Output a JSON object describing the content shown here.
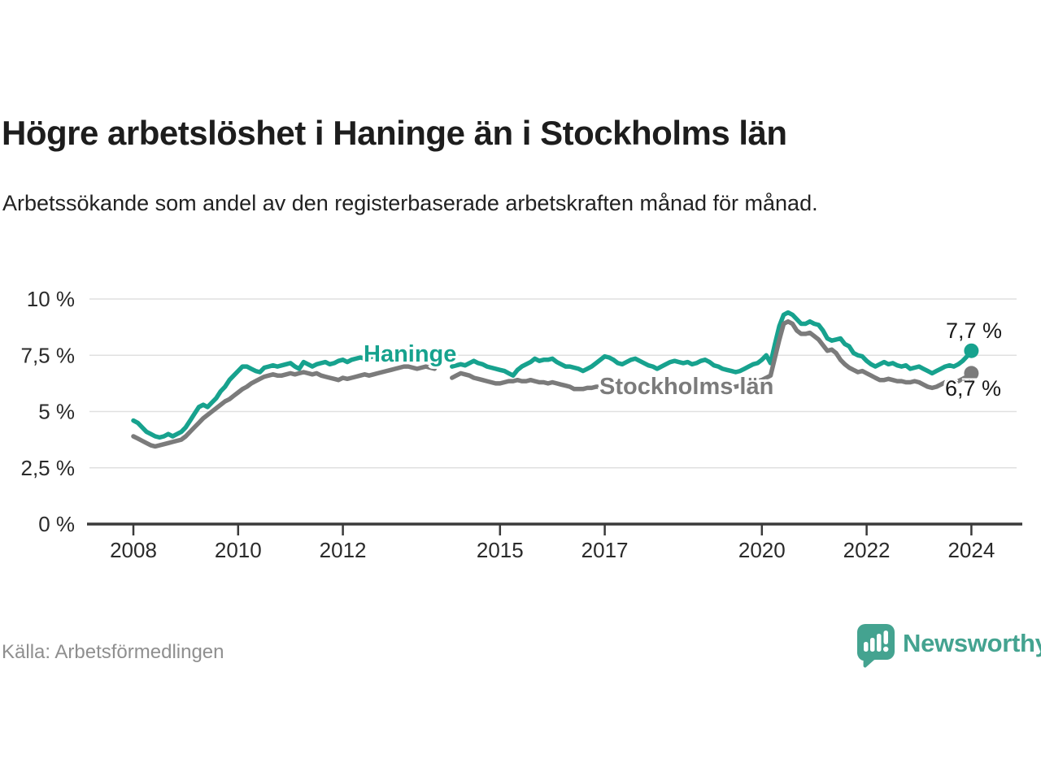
{
  "header": {
    "title": "Högre arbetslöshet i Haninge än i Stockholms län",
    "subtitle": "Arbetssökande som andel av den registerbaserade arbetskraften månad för månad."
  },
  "footer": {
    "source": "Källa: Arbetsförmedlingen",
    "brand": "Newsworthy"
  },
  "colors": {
    "accent_teal": "#17a28e",
    "logo_teal": "#44a390",
    "series_gray": "#7b7b7b",
    "grid": "#e0e0e0",
    "axis": "#3a3a3a",
    "text_dark": "#1d1d1d",
    "text_muted": "#8f8f8f"
  },
  "chart_data": {
    "type": "line",
    "title": "Högre arbetslöshet i Haninge än i Stockholms län",
    "subtitle": "Arbetssökande som andel av den registerbaserade arbetskraften månad för månad.",
    "unit": "%",
    "x_domain": {
      "start_year": 2008,
      "start_month": 1,
      "interval": "month",
      "points": 193,
      "end_year": 2024,
      "end_month": 1
    },
    "data_gap_months": [
      "2013-11",
      "2013-12",
      "2014-01"
    ],
    "ylim": [
      0,
      10
    ],
    "grid": true,
    "x_ticks": [
      2008,
      2010,
      2012,
      2015,
      2017,
      2020,
      2022,
      2024
    ],
    "y_ticks": [
      {
        "value": 10,
        "label": "10 %"
      },
      {
        "value": 7.5,
        "label": "7,5 %"
      },
      {
        "value": 5,
        "label": "5 %"
      },
      {
        "value": 2.5,
        "label": "2,5 %"
      },
      {
        "value": 0,
        "label": "0 %"
      }
    ],
    "series": [
      {
        "name": "Haninge",
        "color": "#17a28e",
        "end_label": "7,7 %",
        "end_value": 7.7,
        "values": [
          4.6,
          4.5,
          4.3,
          4.1,
          4.0,
          3.9,
          3.85,
          3.9,
          4.0,
          3.9,
          4.0,
          4.1,
          4.3,
          4.6,
          4.9,
          5.2,
          5.3,
          5.2,
          5.4,
          5.6,
          5.9,
          6.1,
          6.4,
          6.6,
          6.8,
          7.0,
          7.0,
          6.9,
          6.8,
          6.75,
          6.95,
          7.0,
          7.05,
          7.0,
          7.05,
          7.1,
          7.15,
          7.0,
          6.9,
          7.2,
          7.1,
          7.0,
          7.1,
          7.15,
          7.2,
          7.1,
          7.15,
          7.25,
          7.3,
          7.2,
          7.3,
          7.35,
          7.4,
          7.35,
          7.4,
          7.45,
          7.4,
          7.45,
          7.4,
          7.45,
          7.4,
          7.45,
          7.5,
          7.45,
          7.5,
          7.45,
          7.4,
          7.45,
          7.5,
          7.45,
          null,
          null,
          null,
          7.0,
          7.05,
          7.1,
          7.05,
          7.15,
          7.25,
          7.15,
          7.1,
          7.0,
          6.95,
          6.9,
          6.85,
          6.8,
          6.7,
          6.6,
          6.85,
          7.0,
          7.1,
          7.2,
          7.35,
          7.25,
          7.3,
          7.3,
          7.35,
          7.2,
          7.1,
          7.0,
          7.0,
          6.95,
          6.9,
          6.8,
          6.9,
          7.0,
          7.15,
          7.3,
          7.45,
          7.4,
          7.3,
          7.15,
          7.1,
          7.2,
          7.3,
          7.35,
          7.25,
          7.15,
          7.05,
          7.0,
          6.9,
          7.0,
          7.1,
          7.2,
          7.25,
          7.2,
          7.15,
          7.2,
          7.1,
          7.15,
          7.25,
          7.3,
          7.2,
          7.05,
          7.0,
          6.9,
          6.85,
          6.8,
          6.75,
          6.8,
          6.9,
          7.0,
          7.1,
          7.15,
          7.3,
          7.5,
          7.15,
          8.0,
          8.8,
          9.3,
          9.4,
          9.3,
          9.1,
          8.9,
          8.9,
          9.0,
          8.9,
          8.85,
          8.6,
          8.25,
          8.15,
          8.2,
          8.25,
          8.0,
          7.9,
          7.6,
          7.5,
          7.45,
          7.25,
          7.1,
          7.0,
          7.1,
          7.2,
          7.1,
          7.15,
          7.05,
          7.0,
          7.05,
          6.9,
          6.95,
          7.0,
          6.9,
          6.8,
          6.7,
          6.8,
          6.9,
          7.0,
          7.05,
          7.0,
          7.1,
          7.25,
          7.45,
          7.7
        ]
      },
      {
        "name": "Stockholms län",
        "color": "#7b7b7b",
        "end_label": "6,7 %",
        "end_value": 6.7,
        "values": [
          3.9,
          3.8,
          3.7,
          3.6,
          3.5,
          3.45,
          3.5,
          3.55,
          3.6,
          3.65,
          3.7,
          3.75,
          3.9,
          4.1,
          4.3,
          4.5,
          4.7,
          4.85,
          5.0,
          5.15,
          5.3,
          5.45,
          5.55,
          5.7,
          5.85,
          6.0,
          6.1,
          6.25,
          6.35,
          6.45,
          6.55,
          6.6,
          6.65,
          6.6,
          6.6,
          6.65,
          6.7,
          6.65,
          6.7,
          6.75,
          6.7,
          6.65,
          6.7,
          6.6,
          6.55,
          6.5,
          6.45,
          6.4,
          6.5,
          6.45,
          6.5,
          6.55,
          6.6,
          6.65,
          6.6,
          6.65,
          6.7,
          6.75,
          6.8,
          6.85,
          6.9,
          6.95,
          7.0,
          7.0,
          6.95,
          6.9,
          6.95,
          7.0,
          6.95,
          6.9,
          null,
          null,
          null,
          6.5,
          6.6,
          6.7,
          6.65,
          6.6,
          6.5,
          6.45,
          6.4,
          6.35,
          6.3,
          6.25,
          6.25,
          6.3,
          6.35,
          6.35,
          6.4,
          6.35,
          6.35,
          6.4,
          6.35,
          6.3,
          6.3,
          6.25,
          6.3,
          6.25,
          6.2,
          6.15,
          6.1,
          6.0,
          6.0,
          6.0,
          6.05,
          6.05,
          6.1,
          6.1,
          6.05,
          6.1,
          6.1,
          6.05,
          6.0,
          6.05,
          6.1,
          6.05,
          6.0,
          6.0,
          5.95,
          6.0,
          6.0,
          6.05,
          6.0,
          5.95,
          5.95,
          6.0,
          6.05,
          6.0,
          5.95,
          6.0,
          6.05,
          6.1,
          6.1,
          6.05,
          6.0,
          6.0,
          6.05,
          6.1,
          6.1,
          6.15,
          6.2,
          6.25,
          6.3,
          6.35,
          6.4,
          6.5,
          6.6,
          7.4,
          8.2,
          8.9,
          9.0,
          8.9,
          8.6,
          8.45,
          8.45,
          8.5,
          8.35,
          8.2,
          7.95,
          7.7,
          7.75,
          7.6,
          7.3,
          7.1,
          6.95,
          6.85,
          6.75,
          6.8,
          6.7,
          6.6,
          6.5,
          6.4,
          6.4,
          6.45,
          6.4,
          6.35,
          6.35,
          6.3,
          6.3,
          6.35,
          6.3,
          6.2,
          6.1,
          6.05,
          6.1,
          6.2,
          6.3,
          6.35,
          6.3,
          6.35,
          6.45,
          6.55,
          6.7
        ]
      }
    ]
  }
}
